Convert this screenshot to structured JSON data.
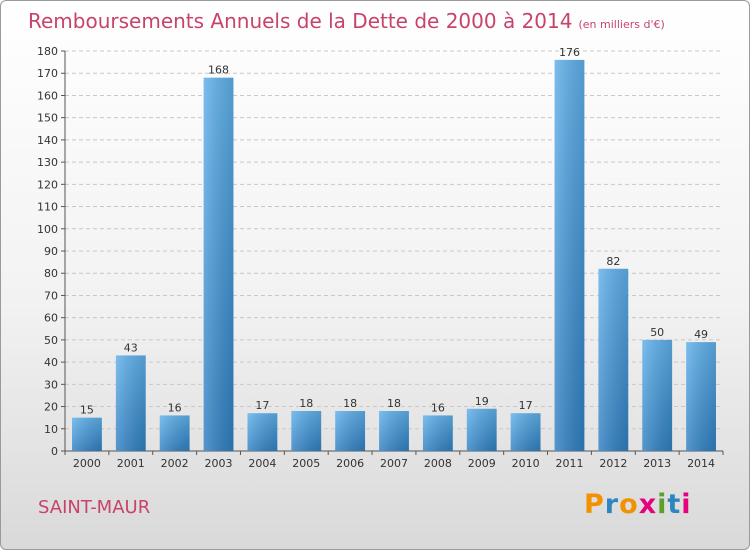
{
  "title": "Remboursements Annuels de la Dette de 2000 à 2014",
  "unit": "(en milliers d'€)",
  "commune": "SAINT-MAUR",
  "logo": {
    "letters": [
      "P",
      "r",
      "o",
      "x",
      "i",
      "t",
      "i"
    ],
    "colors": [
      "#f39200",
      "#2e86c1",
      "#f39200",
      "#e5007e",
      "#5aa02c",
      "#2e86c1",
      "#e5007e"
    ]
  },
  "colors": {
    "title": "#c8436a",
    "bar_light": "#5fb0ea",
    "bar_dark": "#2f7fc1",
    "grid": "#c8c8c8"
  },
  "chart_data": {
    "type": "bar",
    "categories": [
      "2000",
      "2001",
      "2002",
      "2003",
      "2004",
      "2005",
      "2006",
      "2007",
      "2008",
      "2009",
      "2010",
      "2011",
      "2012",
      "2013",
      "2014"
    ],
    "values": [
      15,
      43,
      16,
      168,
      17,
      18,
      18,
      18,
      16,
      19,
      17,
      176,
      82,
      50,
      49
    ],
    "title": "Remboursements Annuels de la Dette de 2000 à 2014",
    "xlabel": "",
    "ylabel": "",
    "ylim": [
      0,
      180
    ],
    "yticks": [
      0,
      10,
      20,
      30,
      40,
      50,
      60,
      70,
      80,
      90,
      100,
      110,
      120,
      130,
      140,
      150,
      160,
      170,
      180
    ],
    "grid": true,
    "data_labels": true
  }
}
